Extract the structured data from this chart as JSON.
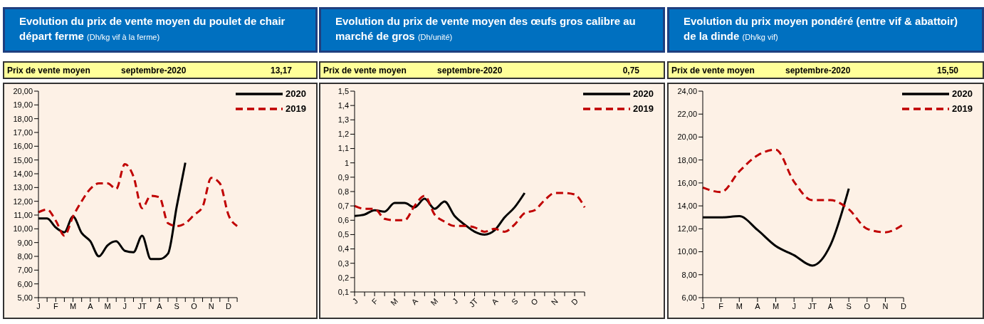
{
  "chart_data": [
    {
      "type": "line",
      "title": "Evolution du prix de vente moyen du  poulet de chair départ ferme",
      "subtitle": "(Dh/kg vif à la ferme)",
      "annotations": [
        "Prix de vente moyen",
        "septembre-2020",
        "13,17"
      ],
      "categories": [
        "J",
        null,
        "F",
        null,
        "M",
        null,
        "A",
        null,
        "M",
        null,
        "J",
        null,
        "JT",
        null,
        "A",
        null,
        "S",
        null,
        "O",
        null,
        "N",
        null,
        "D",
        null
      ],
      "series": [
        {
          "name": "2020",
          "color": "#000000",
          "line_style": "solid",
          "values": [
            10.75,
            10.75,
            10.1,
            9.75,
            10.9,
            9.7,
            9.1,
            8.0,
            8.8,
            9.1,
            8.4,
            8.3,
            9.5,
            7.8,
            7.8,
            8.2,
            11.6,
            14.8,
            null,
            null,
            null,
            null,
            null,
            null
          ]
        },
        {
          "name": "2019",
          "color": "#c00000",
          "line_style": "dashed",
          "values": [
            11.2,
            11.4,
            10.6,
            9.5,
            10.9,
            12.0,
            12.9,
            13.3,
            13.3,
            12.9,
            14.7,
            13.8,
            11.5,
            12.4,
            12.3,
            10.4,
            10.2,
            10.4,
            11.0,
            11.6,
            13.7,
            13.3,
            11.0,
            10.2
          ]
        }
      ],
      "ylim": [
        5,
        20
      ],
      "yticks": [
        {
          "value": 5,
          "label": "5,00"
        },
        {
          "value": 6,
          "label": "6,00"
        },
        {
          "value": 7,
          "label": "7,00"
        },
        {
          "value": 8,
          "label": "8,00"
        },
        {
          "value": 9,
          "label": "9,00"
        },
        {
          "value": 10,
          "label": "10,00"
        },
        {
          "value": 11,
          "label": "11,00"
        },
        {
          "value": 12,
          "label": "12,00"
        },
        {
          "value": 13,
          "label": "13,00"
        },
        {
          "value": 14,
          "label": "14,00"
        },
        {
          "value": 15,
          "label": "15,00"
        },
        {
          "value": 16,
          "label": "16,00"
        },
        {
          "value": 17,
          "label": "17,00"
        },
        {
          "value": 18,
          "label": "18,00"
        },
        {
          "value": 19,
          "label": "19,00"
        },
        {
          "value": 20,
          "label": "20,00"
        }
      ],
      "legend": "top right",
      "marker": "none",
      "grid": false
    },
    {
      "type": "line",
      "title": "Evolution du prix de vente moyen des œufs gros calibre au marché de gros",
      "subtitle": "(Dh/unité)",
      "annotations": [
        "Prix de vente moyen",
        "septembre-2020",
        "0,75"
      ],
      "categories": [
        "J",
        null,
        "F",
        null,
        "M",
        null,
        "A",
        null,
        "M",
        null,
        "J",
        null,
        "JT",
        null,
        "A",
        null,
        "S",
        null,
        "O",
        null,
        "N",
        null,
        "D",
        null
      ],
      "series": [
        {
          "name": "2020",
          "color": "#000000",
          "line_style": "solid",
          "values": [
            0.63,
            0.64,
            0.67,
            0.66,
            0.72,
            0.72,
            0.69,
            0.75,
            0.68,
            0.73,
            0.63,
            0.57,
            0.52,
            0.5,
            0.53,
            0.62,
            0.69,
            0.79,
            null,
            null,
            null,
            null,
            null,
            null
          ]
        },
        {
          "name": "2019",
          "color": "#c00000",
          "line_style": "dashed",
          "values": [
            0.7,
            0.68,
            0.68,
            0.61,
            0.6,
            0.6,
            0.7,
            0.77,
            0.64,
            0.59,
            0.56,
            0.56,
            0.55,
            0.52,
            0.54,
            0.52,
            0.57,
            0.65,
            0.67,
            0.74,
            0.79,
            0.79,
            0.78,
            0.69
          ]
        }
      ],
      "ylim": [
        0.1,
        1.5
      ],
      "yticks": [
        {
          "value": 0.1,
          "label": "0,1"
        },
        {
          "value": 0.2,
          "label": "0,2"
        },
        {
          "value": 0.3,
          "label": "0,3"
        },
        {
          "value": 0.4,
          "label": "0,4"
        },
        {
          "value": 0.5,
          "label": "0,5"
        },
        {
          "value": 0.6,
          "label": "0,6"
        },
        {
          "value": 0.7,
          "label": "0,7"
        },
        {
          "value": 0.8,
          "label": "0,8"
        },
        {
          "value": 0.9,
          "label": "0,9"
        },
        1,
        {
          "value": 1.1,
          "label": "1,1"
        },
        {
          "value": 1.2,
          "label": "1,2"
        },
        {
          "value": 1.3,
          "label": "1,3"
        },
        {
          "value": 1.4,
          "label": "1,4"
        },
        {
          "value": 1.5,
          "label": "1,5"
        }
      ],
      "legend": "top right",
      "marker": "none",
      "grid": false
    },
    {
      "type": "line",
      "title": "Evolution du prix moyen pondéré (entre vif & abattoir) de la dinde",
      "subtitle": "(Dh/kg vif)",
      "annotations": [
        "Prix de vente moyen",
        "septembre-2020",
        "15,50"
      ],
      "categories": [
        "J",
        "F",
        "M",
        "A",
        "M",
        "J",
        "JT",
        "A",
        "S",
        "O",
        "N",
        "D"
      ],
      "series": [
        {
          "name": "2020",
          "color": "#000000",
          "line_style": "solid",
          "values": [
            13.0,
            13.0,
            13.1,
            11.9,
            10.5,
            9.7,
            8.8,
            10.6,
            15.5,
            null,
            null,
            null
          ]
        },
        {
          "name": "2019",
          "color": "#c00000",
          "line_style": "dashed",
          "values": [
            15.6,
            15.2,
            17.0,
            18.4,
            18.9,
            16.1,
            14.5,
            14.5,
            13.7,
            12.0,
            11.7,
            12.4
          ]
        }
      ],
      "ylim": [
        6,
        24
      ],
      "yticks": [
        {
          "value": 6,
          "label": "6,00"
        },
        {
          "value": 8,
          "label": "8,00"
        },
        {
          "value": 10,
          "label": "10,00"
        },
        {
          "value": 12,
          "label": "12,00"
        },
        {
          "value": 14,
          "label": "14,00"
        },
        {
          "value": 16,
          "label": "16,00"
        },
        {
          "value": 18,
          "label": "18,00"
        },
        {
          "value": 20,
          "label": "20,00"
        },
        {
          "value": 22,
          "label": "22,00"
        },
        {
          "value": 24,
          "label": "24,00"
        }
      ],
      "legend": "top right",
      "marker": "none",
      "grid": false
    }
  ]
}
